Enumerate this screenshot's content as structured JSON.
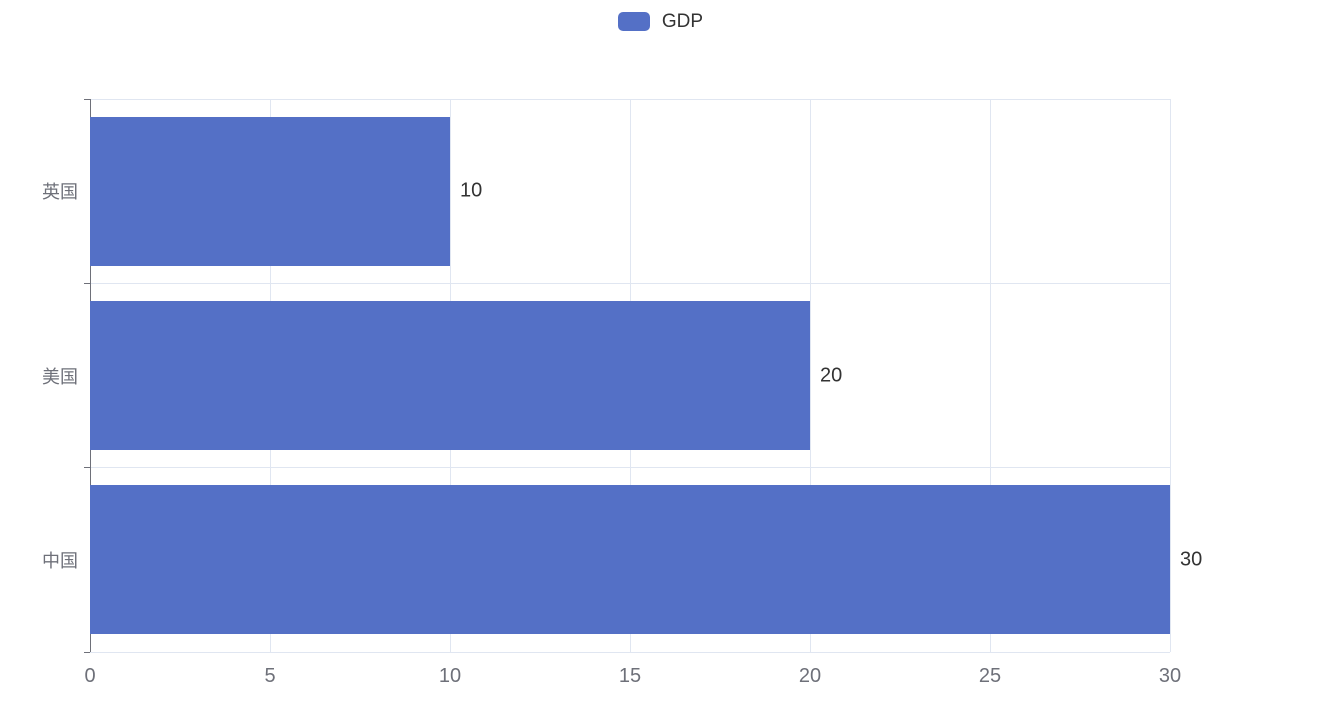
{
  "chart_data": {
    "type": "bar",
    "orientation": "horizontal",
    "title": "",
    "legend": {
      "items": [
        "GDP"
      ],
      "position": "top-center",
      "icon": "roundRect"
    },
    "categories": [
      "英国",
      "美国",
      "中国"
    ],
    "series": [
      {
        "name": "GDP",
        "values": [
          10,
          20,
          30
        ]
      }
    ],
    "data_labels": [
      "10",
      "20",
      "30"
    ],
    "xlabel": "",
    "ylabel": "",
    "xticks": [
      0,
      5,
      10,
      15,
      20,
      25,
      30
    ],
    "xtick_labels": [
      "0",
      "5",
      "10",
      "15",
      "20",
      "25",
      "30"
    ],
    "xlim": [
      0,
      30
    ],
    "grid": true,
    "colors": {
      "bar": "#5470C6",
      "grid_line": "#E0E6F1",
      "axis_line": "#6E7079",
      "axis_label": "#6E7079",
      "category_label": "#6E7079",
      "value_label": "#333333",
      "legend_text": "#333333",
      "background": "#FFFFFF"
    }
  }
}
